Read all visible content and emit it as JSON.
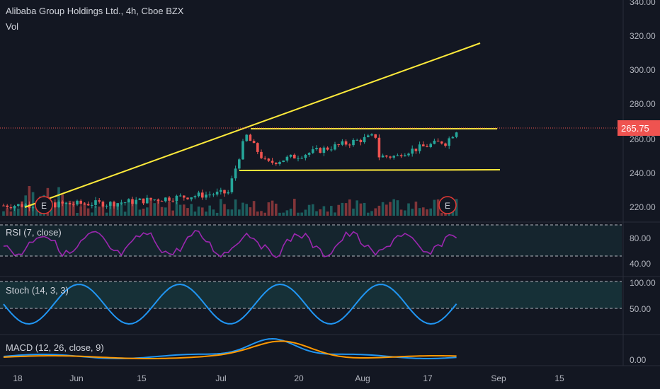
{
  "header": {
    "title": "Alibaba Group Holdings Ltd., 4h, Cboe BZX",
    "volume_label": "Vol"
  },
  "price_pane": {
    "y_ticks": [
      "340.00",
      "320.00",
      "300.00",
      "280.00",
      "260.00",
      "240.00",
      "220.00"
    ],
    "last_price": "265.75",
    "last_price_color": "#ef5350",
    "earnings_markers": [
      "E",
      "E"
    ]
  },
  "rsi_pane": {
    "label": "RSI (7, close)",
    "y_ticks": [
      "80.00",
      "40.00"
    ],
    "line_color": "#9c27b0"
  },
  "stoch_pane": {
    "label": "Stoch (14, 3, 3)",
    "y_ticks": [
      "100.00",
      "50.00"
    ],
    "line_color": "#2196f3"
  },
  "macd_pane": {
    "label": "MACD (12, 26, close, 9)",
    "y_ticks": [
      "0.00"
    ],
    "macd_color": "#2196f3",
    "signal_color": "#ff9800"
  },
  "x_axis": {
    "ticks": [
      "18",
      "Jun",
      "15",
      "Jul",
      "20",
      "Aug",
      "17",
      "Sep",
      "15"
    ]
  },
  "colors": {
    "background": "#131722",
    "up": "#26a69a",
    "down": "#ef5350",
    "trendline": "#ffeb3b"
  }
}
